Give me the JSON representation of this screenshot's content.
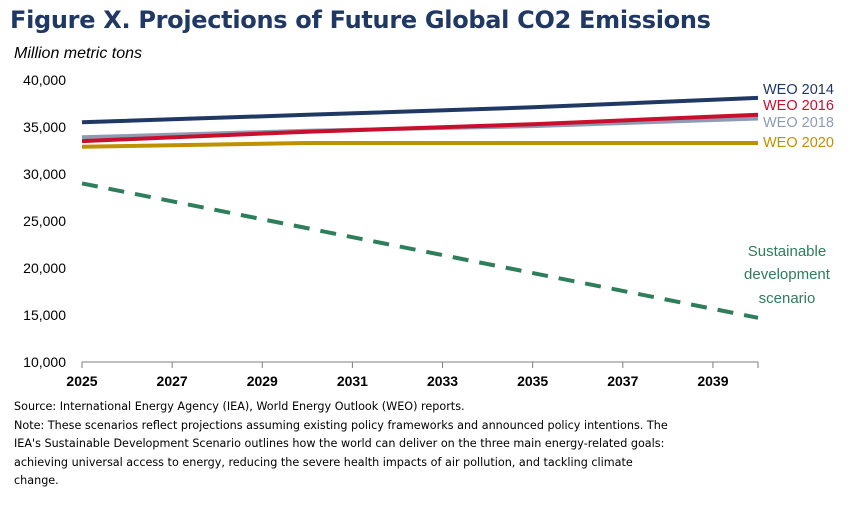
{
  "title": "Figure X. Projections of Future Global CO2 Emissions",
  "subtitle": "Million metric tons",
  "chart_data": {
    "type": "line",
    "ylabel": "Million metric tons",
    "xlim": [
      2025,
      2040
    ],
    "ylim": [
      10000,
      40000
    ],
    "x_ticks": [
      "2025",
      "2027",
      "2029",
      "2031",
      "2033",
      "2035",
      "2037",
      "2039"
    ],
    "y_ticks": [
      "10,000",
      "15,000",
      "20,000",
      "25,000",
      "30,000",
      "35,000",
      "40,000"
    ],
    "x_tick_values": [
      2025,
      2027,
      2029,
      2031,
      2033,
      2035,
      2037,
      2039
    ],
    "y_tick_values": [
      10000,
      15000,
      20000,
      25000,
      30000,
      35000,
      40000
    ],
    "grid": false,
    "legend": "right, inline labels",
    "series": [
      {
        "name": "WEO 2014",
        "color": "#1f3864",
        "dashed": false,
        "x": [
          2025,
          2030,
          2035,
          2040
        ],
        "y": [
          35500,
          36300,
          37100,
          38100
        ]
      },
      {
        "name": "WEO 2016",
        "color": "#c8102e",
        "dashed": false,
        "x": [
          2025,
          2030,
          2035,
          2040
        ],
        "y": [
          33500,
          34500,
          35300,
          36300
        ]
      },
      {
        "name": "WEO 2018",
        "color": "#8e9bb5",
        "dashed": false,
        "x": [
          2025,
          2030,
          2035,
          2040
        ],
        "y": [
          33900,
          34600,
          35100,
          35900
        ]
      },
      {
        "name": "WEO 2020",
        "color": "#bf9000",
        "dashed": false,
        "x": [
          2025,
          2030,
          2035,
          2040
        ],
        "y": [
          32900,
          33300,
          33300,
          33300
        ]
      },
      {
        "name": "Sustainable development scenario",
        "color": "#2e7d5b",
        "dashed": true,
        "x": [
          2025,
          2040
        ],
        "y": [
          29000,
          14700
        ]
      }
    ],
    "annotations": [
      "Sustainable",
      "development",
      "scenario"
    ]
  },
  "notes": {
    "source": "Source: International Energy Agency (IEA), World Energy Outlook (WEO) reports.",
    "note_lines": [
      "Note: These scenarios reflect projections assuming existing policy frameworks and announced policy intentions. The",
      "IEA's Sustainable Development  Scenario outlines how the world can deliver on the three main energy-related  goals:",
      "achieving universal access to energy, reducing  the severe  health impacts of air pollution, and tackling climate",
      "change."
    ]
  }
}
